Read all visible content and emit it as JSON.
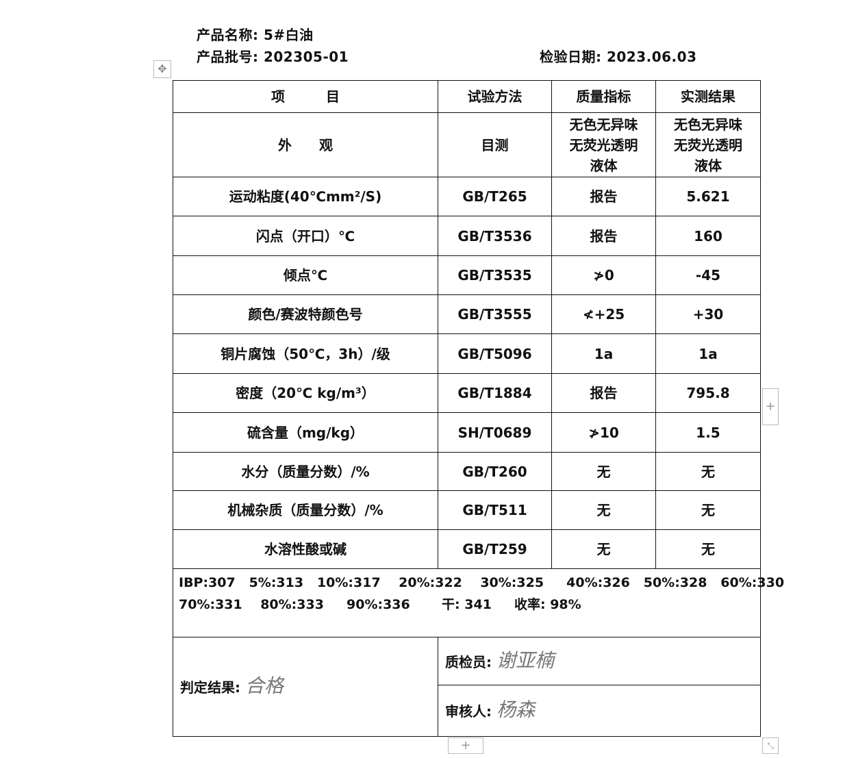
{
  "header": {
    "product_name": "产品名称: 5#白油",
    "batch_no": "产品批号: 202305-01",
    "inspection_date": "检验日期: 2023.06.03"
  },
  "table": {
    "columns": [
      "项　　　目",
      "试验方法",
      "质量指标",
      "实测结果"
    ],
    "rows": [
      {
        "item": "外　　观",
        "method": "目测",
        "spec": "无色无异味\n无荧光透明\n液体",
        "result": "无色无异味\n无荧光透明\n液体"
      },
      {
        "item": "运动粘度(40℃mm²/S)",
        "method": "GB/T265",
        "spec": "报告",
        "result": "5.621"
      },
      {
        "item": "闪点（开口）℃",
        "method": "GB/T3536",
        "spec": "报告",
        "result": "160"
      },
      {
        "item": "倾点℃",
        "method": "GB/T3535",
        "spec": "≯0",
        "result": "-45"
      },
      {
        "item": "颜色/赛波特颜色号",
        "method": "GB/T3555",
        "spec": "≮+25",
        "result": "+30"
      },
      {
        "item": "铜片腐蚀（50℃，3h）/级",
        "method": "GB/T5096",
        "spec": "1a",
        "result": "1a"
      },
      {
        "item": "密度（20℃ kg/m³）",
        "method": "GB/T1884",
        "spec": "报告",
        "result": "795.8"
      },
      {
        "item": "硫含量（mg/kg）",
        "method": "SH/T0689",
        "spec": "≯10",
        "result": "1.5"
      },
      {
        "item": "水分（质量分数）/%",
        "method": "GB/T260",
        "spec": "无",
        "result": "无"
      },
      {
        "item": "机械杂质（质量分数）/%",
        "method": "GB/T511",
        "spec": "无",
        "result": "无"
      },
      {
        "item": "水溶性酸或碱",
        "method": "GB/T259",
        "spec": "无",
        "result": "无"
      }
    ],
    "distillation": "IBP:307   5%:313   10%:317    20%:322    30%:325     40%:326   50%:328   60%:330\n70%:331    80%:333     90%:336       干: 341     收率: 98%",
    "verdict_label": "判定结果:",
    "verdict_signature": "合格",
    "inspector_label": "质检员:",
    "inspector_signature": "谢亚楠",
    "reviewer_label": "审核人:",
    "reviewer_signature": "杨森"
  }
}
